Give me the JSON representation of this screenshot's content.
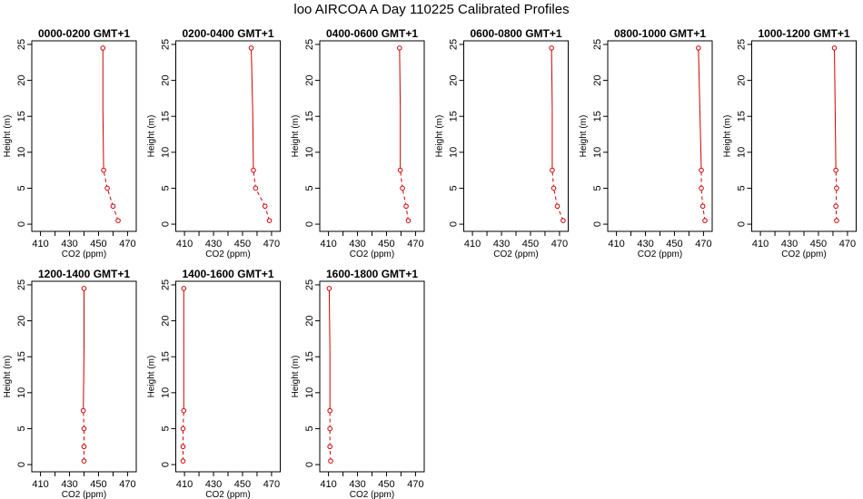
{
  "figure": {
    "title": "loo AIRCOA A  Day 110225  Calibrated Profiles"
  },
  "chart_data": [
    {
      "type": "line",
      "title": "0000-0200 GMT+1",
      "xlabel": "CO2 (ppm)",
      "ylabel": "Height (m)",
      "xlim": [
        404,
        476
      ],
      "ylim": [
        -1,
        25.5
      ],
      "xticks": [
        410,
        430,
        450,
        470
      ],
      "yticks": [
        0,
        5,
        10,
        15,
        20,
        25
      ],
      "series": [
        {
          "x": [
            463.5,
            460.0,
            456.0,
            453.5,
            453.0,
            453.0
          ],
          "y": [
            0.5,
            2.5,
            5,
            7.5,
            16,
            24.5
          ]
        }
      ]
    },
    {
      "type": "line",
      "title": "0200-0400 GMT+1",
      "xlabel": "CO2 (ppm)",
      "ylabel": "Height (m)",
      "xlim": [
        404,
        476
      ],
      "ylim": [
        -1,
        25.5
      ],
      "xticks": [
        410,
        430,
        450,
        470
      ],
      "yticks": [
        0,
        5,
        10,
        15,
        20,
        25
      ],
      "series": [
        {
          "x": [
            468.5,
            465.5,
            459.0,
            457.5,
            457.0,
            456.0
          ],
          "y": [
            0.5,
            2.5,
            5,
            7.5,
            16,
            24.5
          ]
        }
      ]
    },
    {
      "type": "line",
      "title": "0400-0600 GMT+1",
      "xlabel": "CO2 (ppm)",
      "ylabel": "Height (m)",
      "xlim": [
        404,
        476
      ],
      "ylim": [
        -1,
        25.5
      ],
      "xticks": [
        410,
        430,
        450,
        470
      ],
      "yticks": [
        0,
        5,
        10,
        15,
        20,
        25
      ],
      "series": [
        {
          "x": [
            465.0,
            463.5,
            461.0,
            459.5,
            459.5,
            459.0
          ],
          "y": [
            0.5,
            2.5,
            5,
            7.5,
            16,
            24.5
          ]
        }
      ]
    },
    {
      "type": "line",
      "title": "0600-0800 GMT+1",
      "xlabel": "CO2 (ppm)",
      "ylabel": "Height (m)",
      "xlim": [
        404,
        476
      ],
      "ylim": [
        -1,
        25.5
      ],
      "xticks": [
        410,
        430,
        450,
        470
      ],
      "yticks": [
        0,
        5,
        10,
        15,
        20,
        25
      ],
      "series": [
        {
          "x": [
            472.5,
            468.5,
            466.0,
            465.0,
            465.0,
            464.5
          ],
          "y": [
            0.5,
            2.5,
            5,
            7.5,
            16,
            24.5
          ]
        }
      ]
    },
    {
      "type": "line",
      "title": "0800-1000 GMT+1",
      "xlabel": "CO2 (ppm)",
      "ylabel": "Height (m)",
      "xlim": [
        404,
        476
      ],
      "ylim": [
        -1,
        25.5
      ],
      "xticks": [
        410,
        430,
        450,
        470
      ],
      "yticks": [
        0,
        5,
        10,
        15,
        20,
        25
      ],
      "series": [
        {
          "x": [
            471.0,
            469.5,
            468.5,
            468.5,
            467.5,
            466.5
          ],
          "y": [
            0.5,
            2.5,
            5,
            7.5,
            16,
            24.5
          ]
        }
      ]
    },
    {
      "type": "line",
      "title": "1000-1200 GMT+1",
      "xlabel": "CO2 (ppm)",
      "ylabel": "Height (m)",
      "xlim": [
        404,
        476
      ],
      "ylim": [
        -1,
        25.5
      ],
      "xticks": [
        410,
        430,
        450,
        470
      ],
      "yticks": [
        0,
        5,
        10,
        15,
        20,
        25
      ],
      "series": [
        {
          "x": [
            462.5,
            462.0,
            462.5,
            462.0,
            461.5,
            461.0
          ],
          "y": [
            0.5,
            2.5,
            5,
            7.5,
            16,
            24.5
          ]
        }
      ]
    },
    {
      "type": "line",
      "title": "1200-1400 GMT+1",
      "xlabel": "CO2 (ppm)",
      "ylabel": "Height (m)",
      "xlim": [
        404,
        476
      ],
      "ylim": [
        -1,
        25.5
      ],
      "xticks": [
        410,
        430,
        450,
        470
      ],
      "yticks": [
        0,
        5,
        10,
        15,
        20,
        25
      ],
      "series": [
        {
          "x": [
            440.0,
            440.0,
            440.0,
            439.5,
            440.0,
            440.0
          ],
          "y": [
            0.5,
            2.5,
            5,
            7.5,
            16,
            24.5
          ]
        }
      ]
    },
    {
      "type": "line",
      "title": "1400-1600 GMT+1",
      "xlabel": "CO2 (ppm)",
      "ylabel": "Height (m)",
      "xlim": [
        404,
        476
      ],
      "ylim": [
        -1,
        25.5
      ],
      "xticks": [
        410,
        430,
        450,
        470
      ],
      "yticks": [
        0,
        5,
        10,
        15,
        20,
        25
      ],
      "series": [
        {
          "x": [
            409.0,
            409.0,
            409.0,
            409.5,
            409.5,
            409.5
          ],
          "y": [
            0.5,
            2.5,
            5,
            7.5,
            16,
            24.5
          ]
        }
      ]
    },
    {
      "type": "line",
      "title": "1600-1800 GMT+1",
      "xlabel": "CO2 (ppm)",
      "ylabel": "Height (m)",
      "xlim": [
        404,
        476
      ],
      "ylim": [
        -1,
        25.5
      ],
      "xticks": [
        410,
        430,
        450,
        470
      ],
      "yticks": [
        0,
        5,
        10,
        15,
        20,
        25
      ],
      "series": [
        {
          "x": [
            411.5,
            411.0,
            411.0,
            411.0,
            411.0,
            410.5
          ],
          "y": [
            0.5,
            2.5,
            5,
            7.5,
            16,
            24.5
          ]
        }
      ]
    }
  ],
  "colors": {
    "series_line": "#cc0000",
    "axis": "#000000"
  }
}
